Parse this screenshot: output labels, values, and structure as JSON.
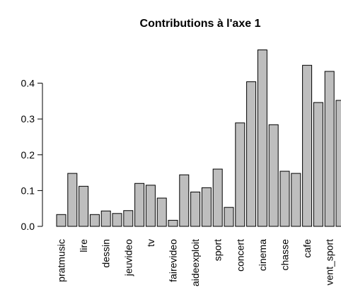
{
  "chart_data": {
    "type": "bar",
    "title": "Contributions  à l'axe 1",
    "xlabel": "",
    "ylabel": "",
    "ylim": [
      0,
      0.5
    ],
    "yticks": [
      0.0,
      0.1,
      0.2,
      0.3,
      0.4
    ],
    "ytick_labels": [
      "0.0",
      "0.1",
      "0.2",
      "0.3",
      "0.4"
    ],
    "categories": [
      "pratmusic",
      "",
      "lire",
      "",
      "dessin",
      "",
      "jeuvideo",
      "",
      "tv",
      "",
      "fairevideo",
      "",
      "aideexploit",
      "",
      "sport",
      "",
      "concert",
      "",
      "cinema",
      "",
      "chasse",
      "",
      "cafe",
      "",
      "vent_sport",
      ""
    ],
    "values": [
      0.033,
      0.148,
      0.112,
      0.033,
      0.043,
      0.036,
      0.044,
      0.12,
      0.115,
      0.079,
      0.017,
      0.144,
      0.096,
      0.108,
      0.16,
      0.053,
      0.289,
      0.404,
      0.493,
      0.284,
      0.154,
      0.148,
      0.45,
      0.346,
      0.433,
      0.352
    ],
    "bar_color": "#bebebe",
    "edge_color": "#000000",
    "grid": false,
    "legend": "none"
  }
}
